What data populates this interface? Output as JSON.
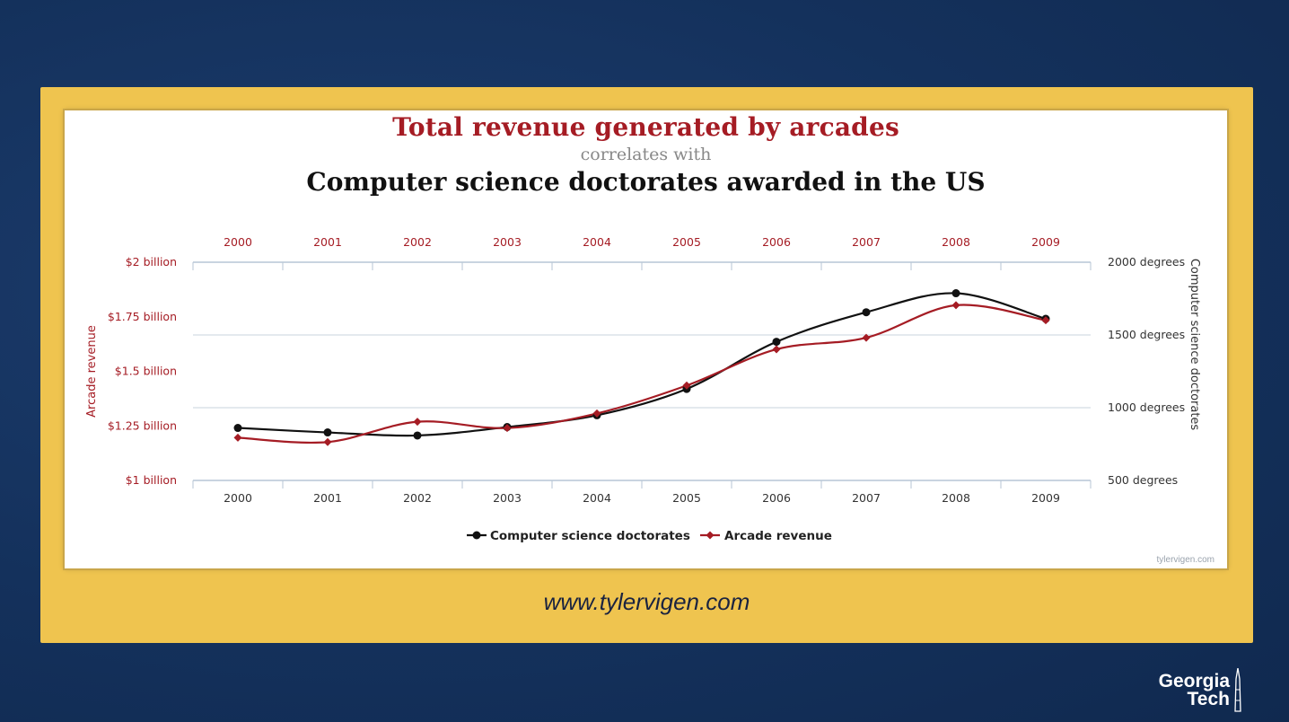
{
  "colors": {
    "arcade": "#a51c24",
    "doctorates": "#111111",
    "panel": "#efc44f",
    "background": "#14315c"
  },
  "chart": {
    "title": "Total revenue generated by arcades",
    "connector": "correlates with",
    "subtitle": "Computer science doctorates awarded in the US",
    "watermark": "tylervigen.com"
  },
  "footer": {
    "url": "www.tylervigen.com"
  },
  "logo": {
    "line1": "Georgia",
    "line2": "Tech",
    "icon": "tower-icon"
  },
  "chart_data": {
    "type": "line",
    "x": [
      "2000",
      "2001",
      "2002",
      "2003",
      "2004",
      "2005",
      "2006",
      "2007",
      "2008",
      "2009"
    ],
    "left_axis": {
      "label": "Arcade revenue",
      "ticks": [
        "$1 billion",
        "$1.25 billion",
        "$1.5 billion",
        "$1.75 billion",
        "$2 billion"
      ],
      "tick_values": [
        1.0,
        1.25,
        1.5,
        1.75,
        2.0
      ],
      "ylim": [
        1.0,
        2.0
      ]
    },
    "right_axis": {
      "label": "Computer science doctorates",
      "ticks": [
        "500 degrees",
        "1000 degrees",
        "1500 degrees",
        "2000 degrees"
      ],
      "tick_values": [
        500,
        1000,
        1500,
        2000
      ],
      "ylim": [
        500,
        2000
      ]
    },
    "series": [
      {
        "name": "Computer science doctorates",
        "axis": "right",
        "marker": "circle",
        "values": [
          861,
          830,
          809,
          867,
          948,
          1129,
          1453,
          1656,
          1787,
          1611
        ]
      },
      {
        "name": "Arcade revenue",
        "axis": "left",
        "marker": "diamond",
        "values": [
          1.196,
          1.176,
          1.269,
          1.24,
          1.307,
          1.435,
          1.601,
          1.654,
          1.803,
          1.734
        ]
      }
    ],
    "grid": true,
    "legend": "bottom-center"
  }
}
